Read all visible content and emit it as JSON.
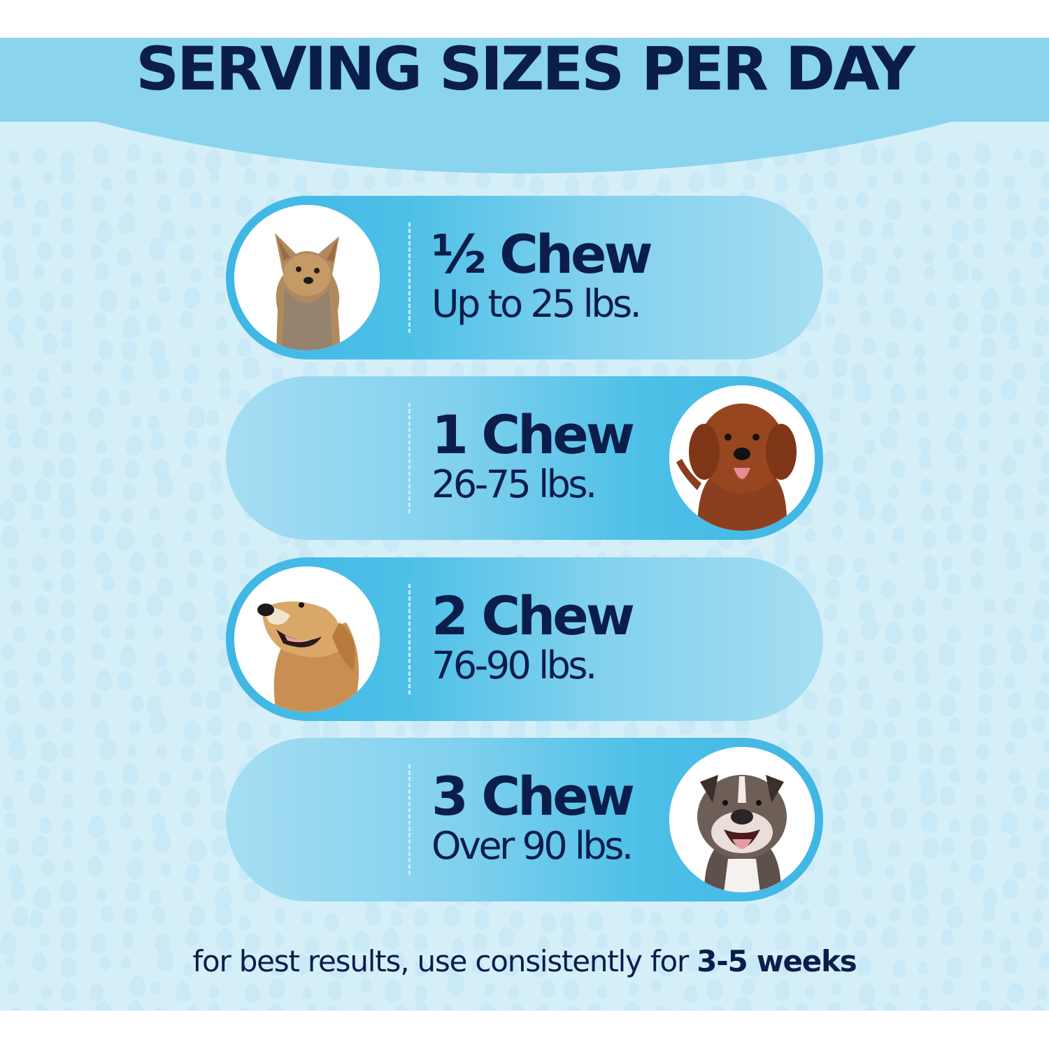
{
  "header": {
    "title": "SERVING SIZES PER DAY"
  },
  "servings": [
    {
      "amount": "½ Chew",
      "range": "Up to 25 lbs.",
      "image_side": "left",
      "image": "yorkshire-terrier-photo"
    },
    {
      "amount": "1 Chew",
      "range": "26-75 lbs.",
      "image_side": "right",
      "image": "labradoodle-photo"
    },
    {
      "amount": "2 Chew",
      "range": "76-90 lbs.",
      "image_side": "left",
      "image": "golden-retriever-photo"
    },
    {
      "amount": "3 Chew",
      "range": "Over 90 lbs.",
      "image_side": "right",
      "image": "pit-bull-photo"
    }
  ],
  "footer": {
    "text": "for best results, use consistently for ",
    "emphasis": "3-5 weeks"
  },
  "colors": {
    "navy_text": "#0a1d4b",
    "header_band": "#8ad4ed",
    "background": "#d5eff9",
    "pill_dark": "#3fb6e4",
    "pill_light": "#a6def2",
    "divider": "#c9eefa"
  }
}
